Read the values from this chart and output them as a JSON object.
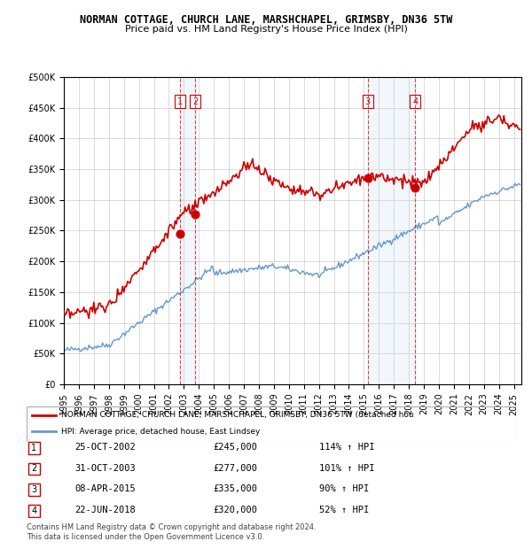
{
  "title": "NORMAN COTTAGE, CHURCH LANE, MARSHCHAPEL, GRIMSBY, DN36 5TW",
  "subtitle": "Price paid vs. HM Land Registry's House Price Index (HPI)",
  "ylim": [
    0,
    500000
  ],
  "yticks": [
    0,
    50000,
    100000,
    150000,
    200000,
    250000,
    300000,
    350000,
    400000,
    450000,
    500000
  ],
  "sale_dates": [
    "2002-10-25",
    "2003-10-31",
    "2015-04-08",
    "2018-06-22"
  ],
  "sale_prices": [
    245000,
    277000,
    335000,
    320000
  ],
  "sale_labels": [
    "1",
    "2",
    "3",
    "4"
  ],
  "vline_pairs": [
    [
      "2002-10-25",
      "2003-10-31"
    ],
    [
      "2015-04-08",
      "2018-06-22"
    ]
  ],
  "red_color": "#cc0000",
  "blue_color": "#6699cc",
  "highlight_color": "#ddeeff",
  "table_rows": [
    [
      "1",
      "25-OCT-2002",
      "£245,000",
      "114% ↑ HPI"
    ],
    [
      "2",
      "31-OCT-2003",
      "£277,000",
      "101% ↑ HPI"
    ],
    [
      "3",
      "08-APR-2015",
      "£335,000",
      "90% ↑ HPI"
    ],
    [
      "4",
      "22-JUN-2018",
      "£320,000",
      "52% ↑ HPI"
    ]
  ],
  "legend_label_red": "NORMAN COTTAGE, CHURCH LANE, MARSHCHAPEL, GRIMSBY, DN36 5TW (detached hou",
  "legend_label_blue": "HPI: Average price, detached house, East Lindsey",
  "footnote": "Contains HM Land Registry data © Crown copyright and database right 2024.\nThis data is licensed under the Open Government Licence v3.0."
}
